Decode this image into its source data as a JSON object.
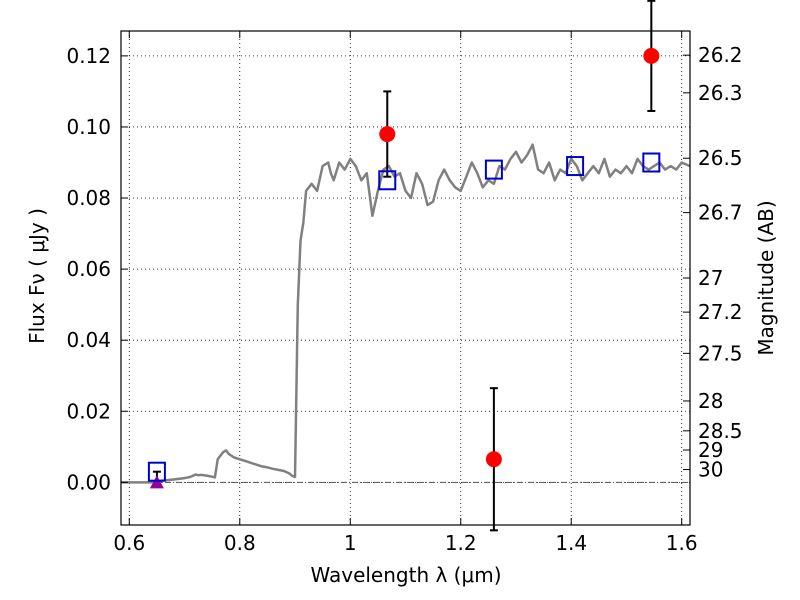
{
  "chart_data": {
    "type": "scatter",
    "xlabel": "Wavelength  λ (μm)",
    "ylabel": "Flux  Fν  ( μJy )",
    "y2label": "Magnitude (AB)",
    "xlim": [
      0.585,
      1.615
    ],
    "ylim": [
      -0.012,
      0.127
    ],
    "grid": true,
    "x_ticks": [
      {
        "value": 0.6,
        "label": "0.6"
      },
      {
        "value": 0.8,
        "label": "0.8"
      },
      {
        "value": 1.0,
        "label": "1"
      },
      {
        "value": 1.2,
        "label": "1.2"
      },
      {
        "value": 1.4,
        "label": "1.4"
      },
      {
        "value": 1.6,
        "label": "1.6"
      }
    ],
    "y_ticks": [
      {
        "value": 0.0,
        "label": "0.00"
      },
      {
        "value": 0.02,
        "label": "0.02"
      },
      {
        "value": 0.04,
        "label": "0.04"
      },
      {
        "value": 0.06,
        "label": "0.06"
      },
      {
        "value": 0.08,
        "label": "0.08"
      },
      {
        "value": 0.1,
        "label": "0.10"
      },
      {
        "value": 0.12,
        "label": "0.12"
      }
    ],
    "magnitude_ticks": [
      {
        "label": "26.2",
        "flux": 0.1202
      },
      {
        "label": "26.3",
        "flux": 0.1096
      },
      {
        "label": "26.5",
        "flux": 0.0912
      },
      {
        "label": "26.7",
        "flux": 0.0759
      },
      {
        "label": "27",
        "flux": 0.0575
      },
      {
        "label": "27.2",
        "flux": 0.0479
      },
      {
        "label": "27.5",
        "flux": 0.0363
      },
      {
        "label": "28",
        "flux": 0.0229
      },
      {
        "label": "28.5",
        "flux": 0.0145
      },
      {
        "label": "29",
        "flux": 0.0091
      },
      {
        "label": "30",
        "flux": 0.0036
      }
    ],
    "reference_line_y": 0.0,
    "series": [
      {
        "kind": "model_spectrum",
        "color": "#808080",
        "x": [
          0.585,
          0.64,
          0.66,
          0.68,
          0.7,
          0.71,
          0.72,
          0.725,
          0.73,
          0.74,
          0.75,
          0.755,
          0.76,
          0.77,
          0.775,
          0.78,
          0.79,
          0.8,
          0.81,
          0.82,
          0.83,
          0.84,
          0.85,
          0.86,
          0.87,
          0.88,
          0.89,
          0.895,
          0.9,
          0.905,
          0.91,
          0.915,
          0.92,
          0.93,
          0.94,
          0.95,
          0.96,
          0.965,
          0.97,
          0.98,
          0.99,
          1.0,
          1.01,
          1.02,
          1.03,
          1.04,
          1.05,
          1.06,
          1.07,
          1.08,
          1.09,
          1.1,
          1.11,
          1.12,
          1.13,
          1.14,
          1.15,
          1.16,
          1.17,
          1.18,
          1.19,
          1.2,
          1.21,
          1.22,
          1.23,
          1.24,
          1.25,
          1.26,
          1.27,
          1.28,
          1.29,
          1.3,
          1.31,
          1.32,
          1.33,
          1.34,
          1.35,
          1.36,
          1.37,
          1.38,
          1.39,
          1.4,
          1.41,
          1.42,
          1.43,
          1.44,
          1.45,
          1.46,
          1.47,
          1.48,
          1.49,
          1.5,
          1.51,
          1.52,
          1.53,
          1.54,
          1.55,
          1.56,
          1.57,
          1.58,
          1.59,
          1.6,
          1.615
        ],
        "y": [
          0.0,
          0.0,
          0.0005,
          0.0008,
          0.0012,
          0.0015,
          0.0022,
          0.002,
          0.0021,
          0.0019,
          0.0016,
          0.0014,
          0.0065,
          0.0085,
          0.009,
          0.008,
          0.007,
          0.0065,
          0.006,
          0.0055,
          0.005,
          0.0045,
          0.0042,
          0.0038,
          0.0035,
          0.0032,
          0.0025,
          0.0018,
          0.0015,
          0.05,
          0.068,
          0.073,
          0.082,
          0.084,
          0.082,
          0.089,
          0.09,
          0.087,
          0.085,
          0.09,
          0.088,
          0.091,
          0.089,
          0.085,
          0.087,
          0.075,
          0.082,
          0.088,
          0.089,
          0.086,
          0.087,
          0.082,
          0.08,
          0.087,
          0.084,
          0.078,
          0.079,
          0.085,
          0.088,
          0.085,
          0.083,
          0.082,
          0.086,
          0.09,
          0.087,
          0.083,
          0.085,
          0.084,
          0.089,
          0.088,
          0.091,
          0.093,
          0.09,
          0.092,
          0.095,
          0.088,
          0.087,
          0.09,
          0.085,
          0.088,
          0.087,
          0.091,
          0.089,
          0.085,
          0.087,
          0.089,
          0.087,
          0.091,
          0.086,
          0.088,
          0.087,
          0.089,
          0.087,
          0.091,
          0.089,
          0.088,
          0.089,
          0.09,
          0.088,
          0.089,
          0.088,
          0.09,
          0.089
        ]
      },
      {
        "kind": "observed",
        "marker": "circle",
        "color": "#ff0000",
        "x": [
          1.067,
          1.26,
          1.545
        ],
        "y": [
          0.098,
          0.0065,
          0.12
        ],
        "err": [
          0.012,
          0.02,
          0.0155
        ]
      },
      {
        "kind": "model_photometry",
        "marker": "square-open",
        "color": "#0000cc",
        "x": [
          0.65,
          1.067,
          1.26,
          1.407,
          1.545
        ],
        "y": [
          0.003,
          0.085,
          0.088,
          0.089,
          0.09
        ]
      },
      {
        "kind": "upper_limit",
        "marker": "triangle",
        "color": "#990099",
        "x": [
          0.65
        ],
        "y": [
          0.0
        ],
        "err_up": [
          0.003
        ]
      }
    ]
  }
}
